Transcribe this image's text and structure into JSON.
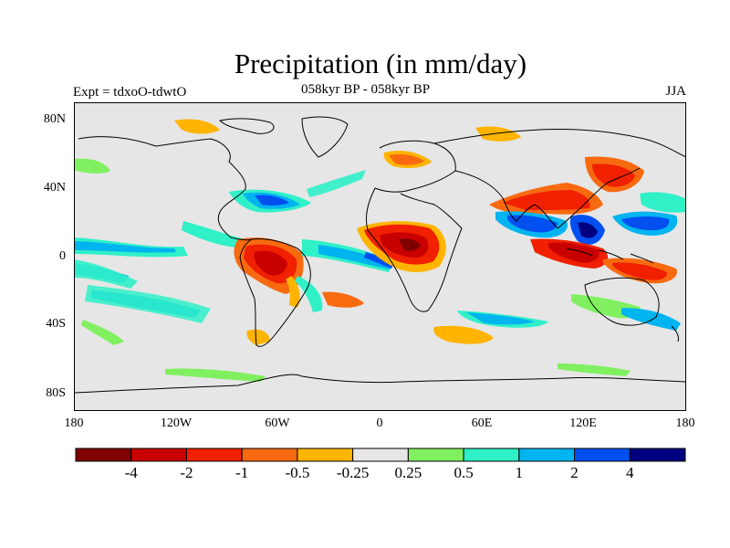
{
  "title": "Precipitation (in mm/day)",
  "subtitle": "058kyr BP - 058kyr BP",
  "experiment": "Expt = tdxoO-tdwtO",
  "season": "JJA",
  "axes": {
    "lat_labels": [
      "80N",
      "40N",
      "0",
      "40S",
      "80S"
    ],
    "lon_labels": [
      "180",
      "120W",
      "60W",
      "0",
      "60E",
      "120E",
      "180"
    ]
  },
  "colorbar": {
    "colors": [
      "#800000",
      "#c80000",
      "#f02000",
      "#f86a10",
      "#ffb400",
      "#e6e6e6",
      "#80f060",
      "#30f0c8",
      "#00b4f0",
      "#0050f0",
      "#000080"
    ],
    "labels": [
      "-4",
      "-2",
      "-1",
      "-0.5",
      "-0.25",
      "0.25",
      "0.5",
      "1",
      "2",
      "4"
    ]
  },
  "colors": {
    "ocean_land_background": "#e6e6e6",
    "coastline": "#000000"
  }
}
